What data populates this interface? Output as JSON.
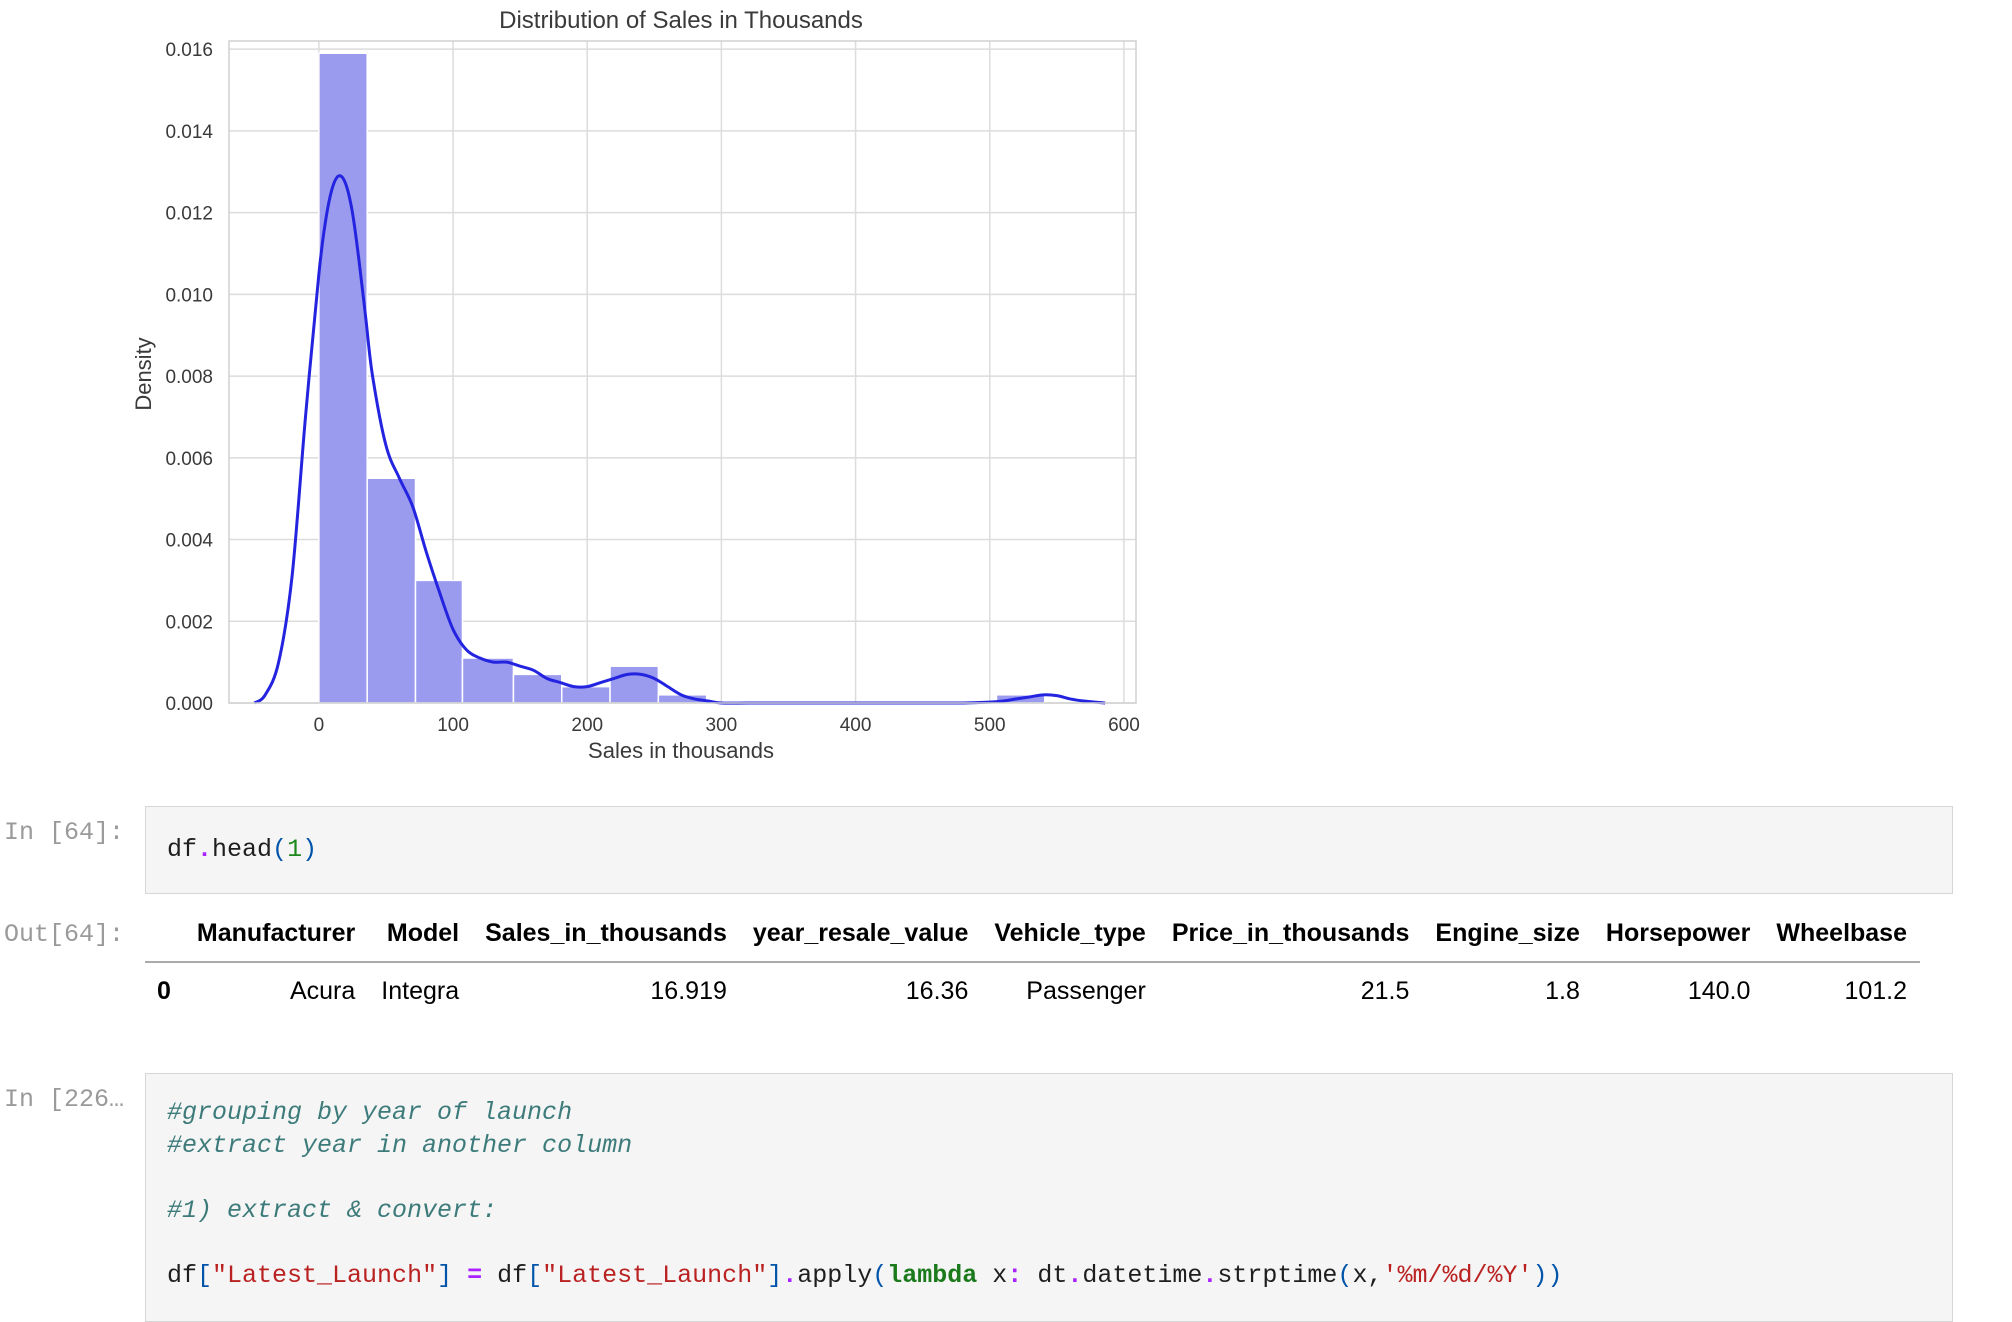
{
  "chart_data": {
    "type": "histogram",
    "title": "Distribution of Sales in Thousands",
    "xlabel": "Sales in thousands",
    "ylabel": "Density",
    "xlim": [
      -67,
      609
    ],
    "ylim": [
      0,
      0.0162
    ],
    "xticks": [
      0,
      100,
      200,
      300,
      400,
      500,
      600
    ],
    "yticks": [
      0.0,
      0.002,
      0.004,
      0.006,
      0.008,
      0.01,
      0.012,
      0.014,
      0.016
    ],
    "ytick_labels": [
      "0.000",
      "0.002",
      "0.004",
      "0.006",
      "0.008",
      "0.010",
      "0.012",
      "0.014",
      "0.016"
    ],
    "grid": true,
    "bar_color": "#9a9aef",
    "curve_color": "#2424e0",
    "bins": [
      {
        "x0": 0,
        "x1": 36,
        "density": 0.0159
      },
      {
        "x0": 36,
        "x1": 72,
        "density": 0.0055
      },
      {
        "x0": 72,
        "x1": 107,
        "density": 0.003
      },
      {
        "x0": 107,
        "x1": 145,
        "density": 0.0011
      },
      {
        "x0": 145,
        "x1": 181,
        "density": 0.0007
      },
      {
        "x0": 181,
        "x1": 217,
        "density": 0.0004
      },
      {
        "x0": 217,
        "x1": 253,
        "density": 0.0009
      },
      {
        "x0": 253,
        "x1": 289,
        "density": 0.0002
      },
      {
        "x0": 289,
        "x1": 325,
        "density": 0.0
      },
      {
        "x0": 325,
        "x1": 361,
        "density": 0.0
      },
      {
        "x0": 361,
        "x1": 397,
        "density": 0.0
      },
      {
        "x0": 397,
        "x1": 433,
        "density": 0.0
      },
      {
        "x0": 433,
        "x1": 469,
        "density": 0.0
      },
      {
        "x0": 469,
        "x1": 505,
        "density": 0.0
      },
      {
        "x0": 505,
        "x1": 541,
        "density": 0.0002
      }
    ],
    "kde": {
      "x": [
        -48,
        -40,
        -30,
        -20,
        -10,
        0,
        5,
        10,
        15,
        20,
        25,
        30,
        35,
        40,
        50,
        60,
        70,
        80,
        90,
        100,
        110,
        120,
        130,
        140,
        150,
        160,
        170,
        180,
        190,
        200,
        210,
        220,
        230,
        240,
        250,
        260,
        270,
        280,
        290,
        300,
        320,
        350,
        400,
        450,
        480,
        500,
        510,
        520,
        530,
        540,
        550,
        560,
        570,
        586
      ],
      "y": [
        0.0,
        0.0002,
        0.001,
        0.0031,
        0.007,
        0.0105,
        0.0118,
        0.0126,
        0.0129,
        0.0127,
        0.012,
        0.0108,
        0.0094,
        0.008,
        0.0063,
        0.0055,
        0.0048,
        0.0037,
        0.0027,
        0.0018,
        0.0013,
        0.0011,
        0.001,
        0.001,
        0.0009,
        0.0008,
        0.0006,
        0.0005,
        0.0004,
        0.0004,
        0.0005,
        0.0006,
        0.0007,
        0.0007,
        0.0006,
        0.0004,
        0.0002,
        0.0001,
        5e-05,
        0.0,
        0.0,
        0.0,
        0.0,
        0.0,
        0.0,
        2e-05,
        5e-05,
        0.0001,
        0.00015,
        0.0002,
        0.00018,
        0.0001,
        5e-05,
        0.0
      ]
    }
  },
  "cells": {
    "head_cell": {
      "prompt": "In [64]:",
      "tokens": [
        {
          "t": "df",
          "c": "tk-punc"
        },
        {
          "t": ".",
          "c": "tk-op"
        },
        {
          "t": "head",
          "c": "tk-punc"
        },
        {
          "t": "(",
          "c": "tk-paren"
        },
        {
          "t": "1",
          "c": "tk-num"
        },
        {
          "t": ")",
          "c": "tk-paren"
        }
      ]
    },
    "out_cell": {
      "prompt": "Out[64]:",
      "columns": [
        "",
        "Manufacturer",
        "Model",
        "Sales_in_thousands",
        "year_resale_value",
        "Vehicle_type",
        "Price_in_thousands",
        "Engine_size",
        "Horsepower",
        "Wheelbase"
      ],
      "rows": [
        [
          "0",
          "Acura",
          "Integra",
          "16.919",
          "16.36",
          "Passenger",
          "21.5",
          "1.8",
          "140.0",
          "101.2"
        ]
      ]
    },
    "launch_cell": {
      "prompt": "In [226…",
      "lines": [
        [
          {
            "t": "#grouping by year of launch",
            "c": "tk-comment"
          }
        ],
        [
          {
            "t": "#extract year in another column",
            "c": "tk-comment"
          }
        ],
        [],
        [
          {
            "t": "#1) extract & convert:",
            "c": "tk-comment"
          }
        ],
        [],
        [
          {
            "t": "df",
            "c": "tk-punc"
          },
          {
            "t": "[",
            "c": "tk-paren"
          },
          {
            "t": "\"Latest_Launch\"",
            "c": "tk-str"
          },
          {
            "t": "]",
            "c": "tk-paren"
          },
          {
            "t": " ",
            "c": "tk-punc"
          },
          {
            "t": "=",
            "c": "tk-op"
          },
          {
            "t": " df",
            "c": "tk-punc"
          },
          {
            "t": "[",
            "c": "tk-paren"
          },
          {
            "t": "\"Latest_Launch\"",
            "c": "tk-str"
          },
          {
            "t": "]",
            "c": "tk-paren"
          },
          {
            "t": ".",
            "c": "tk-op"
          },
          {
            "t": "apply",
            "c": "tk-punc"
          },
          {
            "t": "(",
            "c": "tk-paren"
          },
          {
            "t": "lambda",
            "c": "tk-kw"
          },
          {
            "t": " x",
            "c": "tk-punc"
          },
          {
            "t": ":",
            "c": "tk-op"
          },
          {
            "t": " dt",
            "c": "tk-punc"
          },
          {
            "t": ".",
            "c": "tk-op"
          },
          {
            "t": "datetime",
            "c": "tk-punc"
          },
          {
            "t": ".",
            "c": "tk-op"
          },
          {
            "t": "strptime",
            "c": "tk-punc"
          },
          {
            "t": "(",
            "c": "tk-paren"
          },
          {
            "t": "x",
            "c": "tk-punc"
          },
          {
            "t": ",",
            "c": "tk-punc"
          },
          {
            "t": "'%m/%d/%Y'",
            "c": "tk-str"
          },
          {
            "t": "))",
            "c": "tk-paren"
          }
        ]
      ]
    }
  }
}
